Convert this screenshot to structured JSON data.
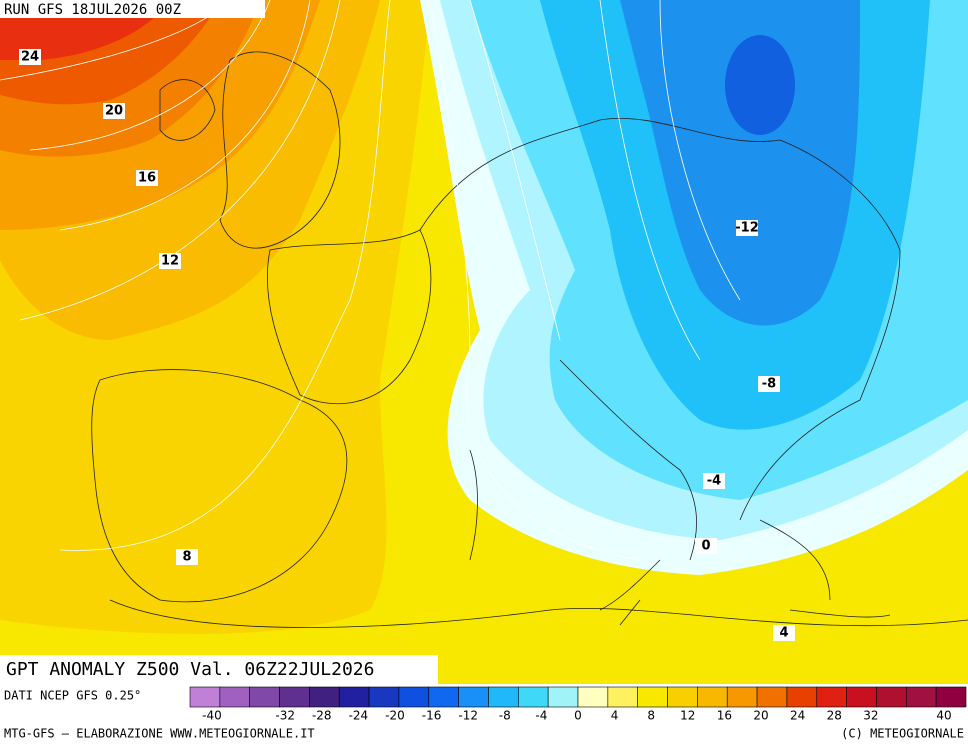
{
  "header": {
    "run": "RUN GFS 18JUL2026 00Z"
  },
  "map": {
    "title": "GPT ANOMALY Z500 Val. 06Z22JUL2026",
    "contour_labels": [
      24,
      20,
      16,
      12,
      8,
      -12,
      -8,
      -4,
      0,
      4
    ]
  },
  "legend": {
    "source": "DATI NCEP GFS 0.25°",
    "colors": [
      "#c080d8",
      "#a060c0",
      "#8048a8",
      "#603090",
      "#402080",
      "#2020a0",
      "#1838c0",
      "#1050e0",
      "#1068f0",
      "#1890f8",
      "#20b8f8",
      "#40d8f8",
      "#a0f4f8",
      "#ffffc0",
      "#fff060",
      "#f8e800",
      "#f8d000",
      "#f8b800",
      "#f89800",
      "#f07000",
      "#e84000",
      "#e02010",
      "#c81020",
      "#b01030",
      "#a01040",
      "#900040"
    ],
    "ticks": [
      -40,
      -32,
      -28,
      -24,
      -20,
      -16,
      -12,
      -8,
      -4,
      0,
      4,
      8,
      12,
      16,
      20,
      24,
      28,
      32,
      40
    ]
  },
  "footer": {
    "left": "MTG-GFS — ELABORAZIONE WWW.METEOGIORNALE.IT",
    "right": "(C) METEOGIORNALE"
  }
}
